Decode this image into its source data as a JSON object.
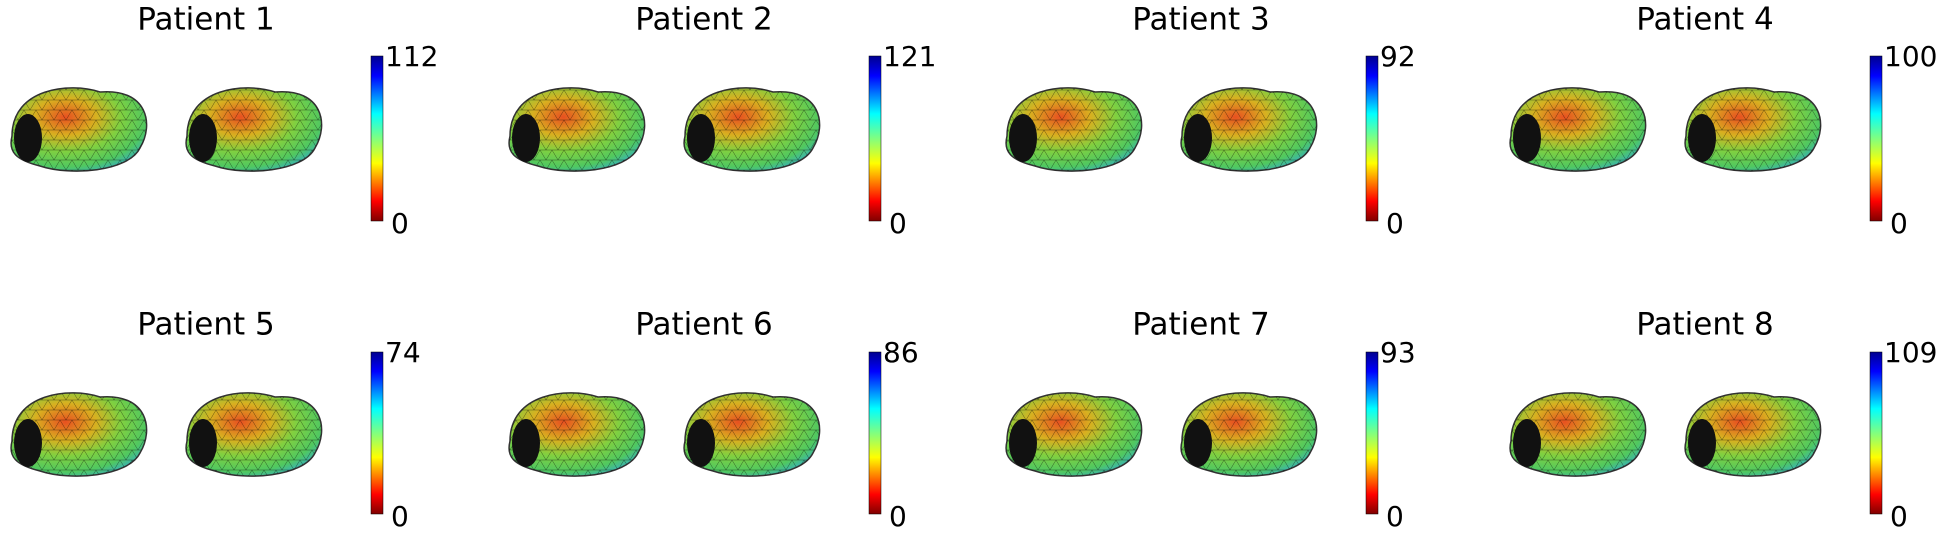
{
  "panels": [
    {
      "title": "Patient 1",
      "colorbar": {
        "max": 112,
        "min": 0
      }
    },
    {
      "title": "Patient 2",
      "colorbar": {
        "max": 121,
        "min": 0
      }
    },
    {
      "title": "Patient 3",
      "colorbar": {
        "max": 92,
        "min": 0
      }
    },
    {
      "title": "Patient 4",
      "colorbar": {
        "max": 100,
        "min": 0
      }
    },
    {
      "title": "Patient 5",
      "colorbar": {
        "max": 74,
        "min": 0
      }
    },
    {
      "title": "Patient 6",
      "colorbar": {
        "max": 86,
        "min": 0
      }
    },
    {
      "title": "Patient 7",
      "colorbar": {
        "max": 93,
        "min": 0
      }
    },
    {
      "title": "Patient 8",
      "colorbar": {
        "max": 109,
        "min": 0
      }
    }
  ]
}
